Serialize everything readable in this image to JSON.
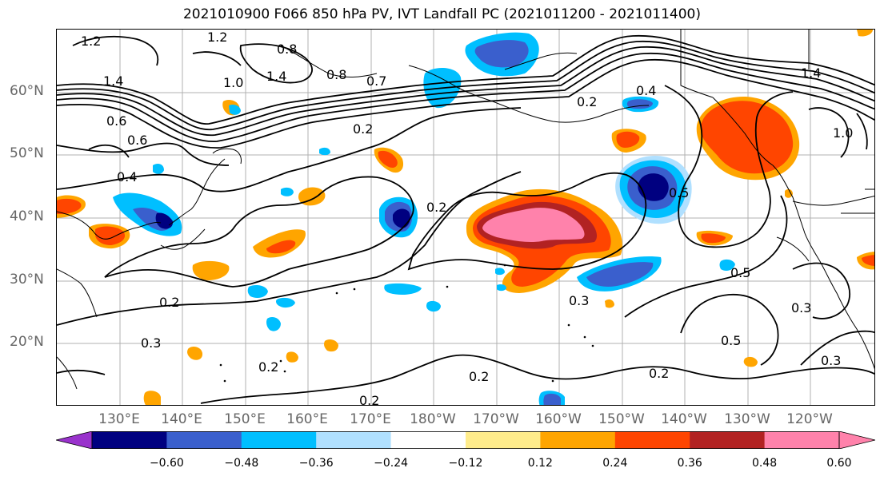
{
  "title": "2021010900 F066 850 hPa PV, IVT Landfall PC (2021011200 - 2021011400)",
  "lat_labels": [
    "60°N",
    "50°N",
    "40°N",
    "30°N",
    "20°N"
  ],
  "lon_labels": [
    "130°E",
    "140°E",
    "150°E",
    "160°E",
    "170°E",
    "180°W",
    "170°W",
    "160°W",
    "150°W",
    "140°W",
    "130°W",
    "120°W"
  ],
  "contour_labels": [
    "1.2",
    "1.2",
    "0.8",
    "1.4",
    "1.0",
    "1.4",
    "0.8",
    "0.7",
    "0.6",
    "0.6",
    "0.4",
    "0.2",
    "0.2",
    "0.2",
    "0.5",
    "0.5",
    "0.3",
    "0.3",
    "0.5",
    "0.2",
    "0.3",
    "0.3",
    "0.2",
    "0.2",
    "0.2",
    "1.4",
    "1.0",
    "0.4",
    "0.2"
  ],
  "colorbar": {
    "ticks": [
      "−0.60",
      "−0.48",
      "−0.36",
      "−0.24",
      "−0.12",
      "0.12",
      "0.24",
      "0.36",
      "0.48",
      "0.60"
    ],
    "colors": [
      "#9932cc",
      "#000080",
      "#3a5fcd",
      "#00bfff",
      "#b0e0ff",
      "#ffffff",
      "#ffec8b",
      "#ffa500",
      "#ff4500",
      "#b22222",
      "#ff82ab",
      "#ff82ab"
    ]
  }
}
